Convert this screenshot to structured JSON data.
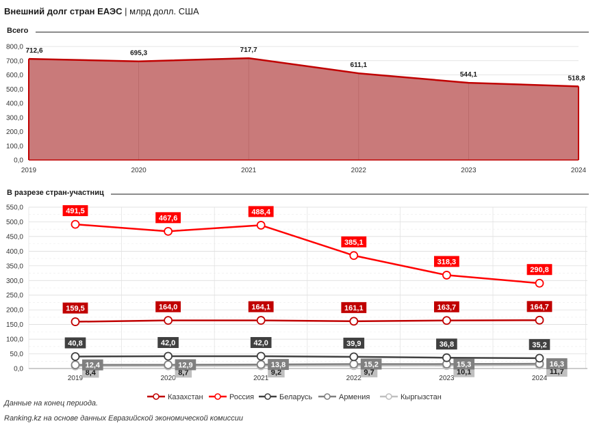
{
  "header": {
    "title": "Внешний долг стран ЕАЭС",
    "separator": "|",
    "unit": "млрд долл. США"
  },
  "footer": {
    "note": "Данные на конец периода.",
    "source": "Ranking.kz на основе данных Евразийской экономической комиссии"
  },
  "colors": {
    "total": "#c00000",
    "area_fill": "#c97a7a",
    "Казахстан": "#c00000",
    "Россия": "#ff0000",
    "Беларусь": "#404040",
    "Армения": "#808080",
    "Кыргызстан": "#bfbfbf"
  },
  "chart_data": [
    {
      "type": "area",
      "section_title": "Всего",
      "categories": [
        "2019",
        "2020",
        "2021",
        "2022",
        "2023",
        "2024"
      ],
      "values": [
        712.6,
        695.3,
        717.7,
        611.1,
        544.1,
        518.8
      ],
      "value_labels": [
        "712,6",
        "695,3",
        "717,7",
        "611,1",
        "544,1",
        "518,8"
      ],
      "ylim": [
        0,
        800
      ],
      "yticks": [
        "0,0",
        "100,0",
        "200,0",
        "300,0",
        "400,0",
        "500,0",
        "600,0",
        "700,0",
        "800,0"
      ],
      "grid": true
    },
    {
      "type": "line",
      "section_title": "В разрезе стран-участниц",
      "categories": [
        "2019",
        "2020",
        "2021",
        "2022",
        "2023",
        "2024"
      ],
      "ylim": [
        0,
        550
      ],
      "yticks": [
        "0,0",
        "50,0",
        "100,0",
        "150,0",
        "200,0",
        "250,0",
        "300,0",
        "350,0",
        "400,0",
        "450,0",
        "500,0",
        "550,0"
      ],
      "legend_position": "bottom",
      "grid": true,
      "series": [
        {
          "name": "Казахстан",
          "values": [
            159.5,
            164.0,
            164.1,
            161.1,
            163.7,
            164.7
          ],
          "labels": [
            "159,5",
            "164,0",
            "164,1",
            "161,1",
            "163,7",
            "164,7"
          ]
        },
        {
          "name": "Россия",
          "values": [
            491.5,
            467.6,
            488.4,
            385.1,
            318.3,
            290.8
          ],
          "labels": [
            "491,5",
            "467,6",
            "488,4",
            "385,1",
            "318,3",
            "290,8"
          ]
        },
        {
          "name": "Беларусь",
          "values": [
            40.8,
            42.0,
            42.0,
            39.9,
            36.8,
            35.2
          ],
          "labels": [
            "40,8",
            "42,0",
            "42,0",
            "39,9",
            "36,8",
            "35,2"
          ]
        },
        {
          "name": "Армения",
          "values": [
            12.4,
            12.9,
            13.8,
            15.2,
            15.3,
            16.3
          ],
          "labels": [
            "12,4",
            "12,9",
            "13,8",
            "15,2",
            "15,3",
            "16,3"
          ]
        },
        {
          "name": "Кыргызстан",
          "values": [
            8.4,
            8.7,
            9.2,
            9.7,
            10.1,
            11.7
          ],
          "labels": [
            "8,4",
            "8,7",
            "9,2",
            "9,7",
            "10,1",
            "11,7"
          ]
        }
      ]
    }
  ]
}
